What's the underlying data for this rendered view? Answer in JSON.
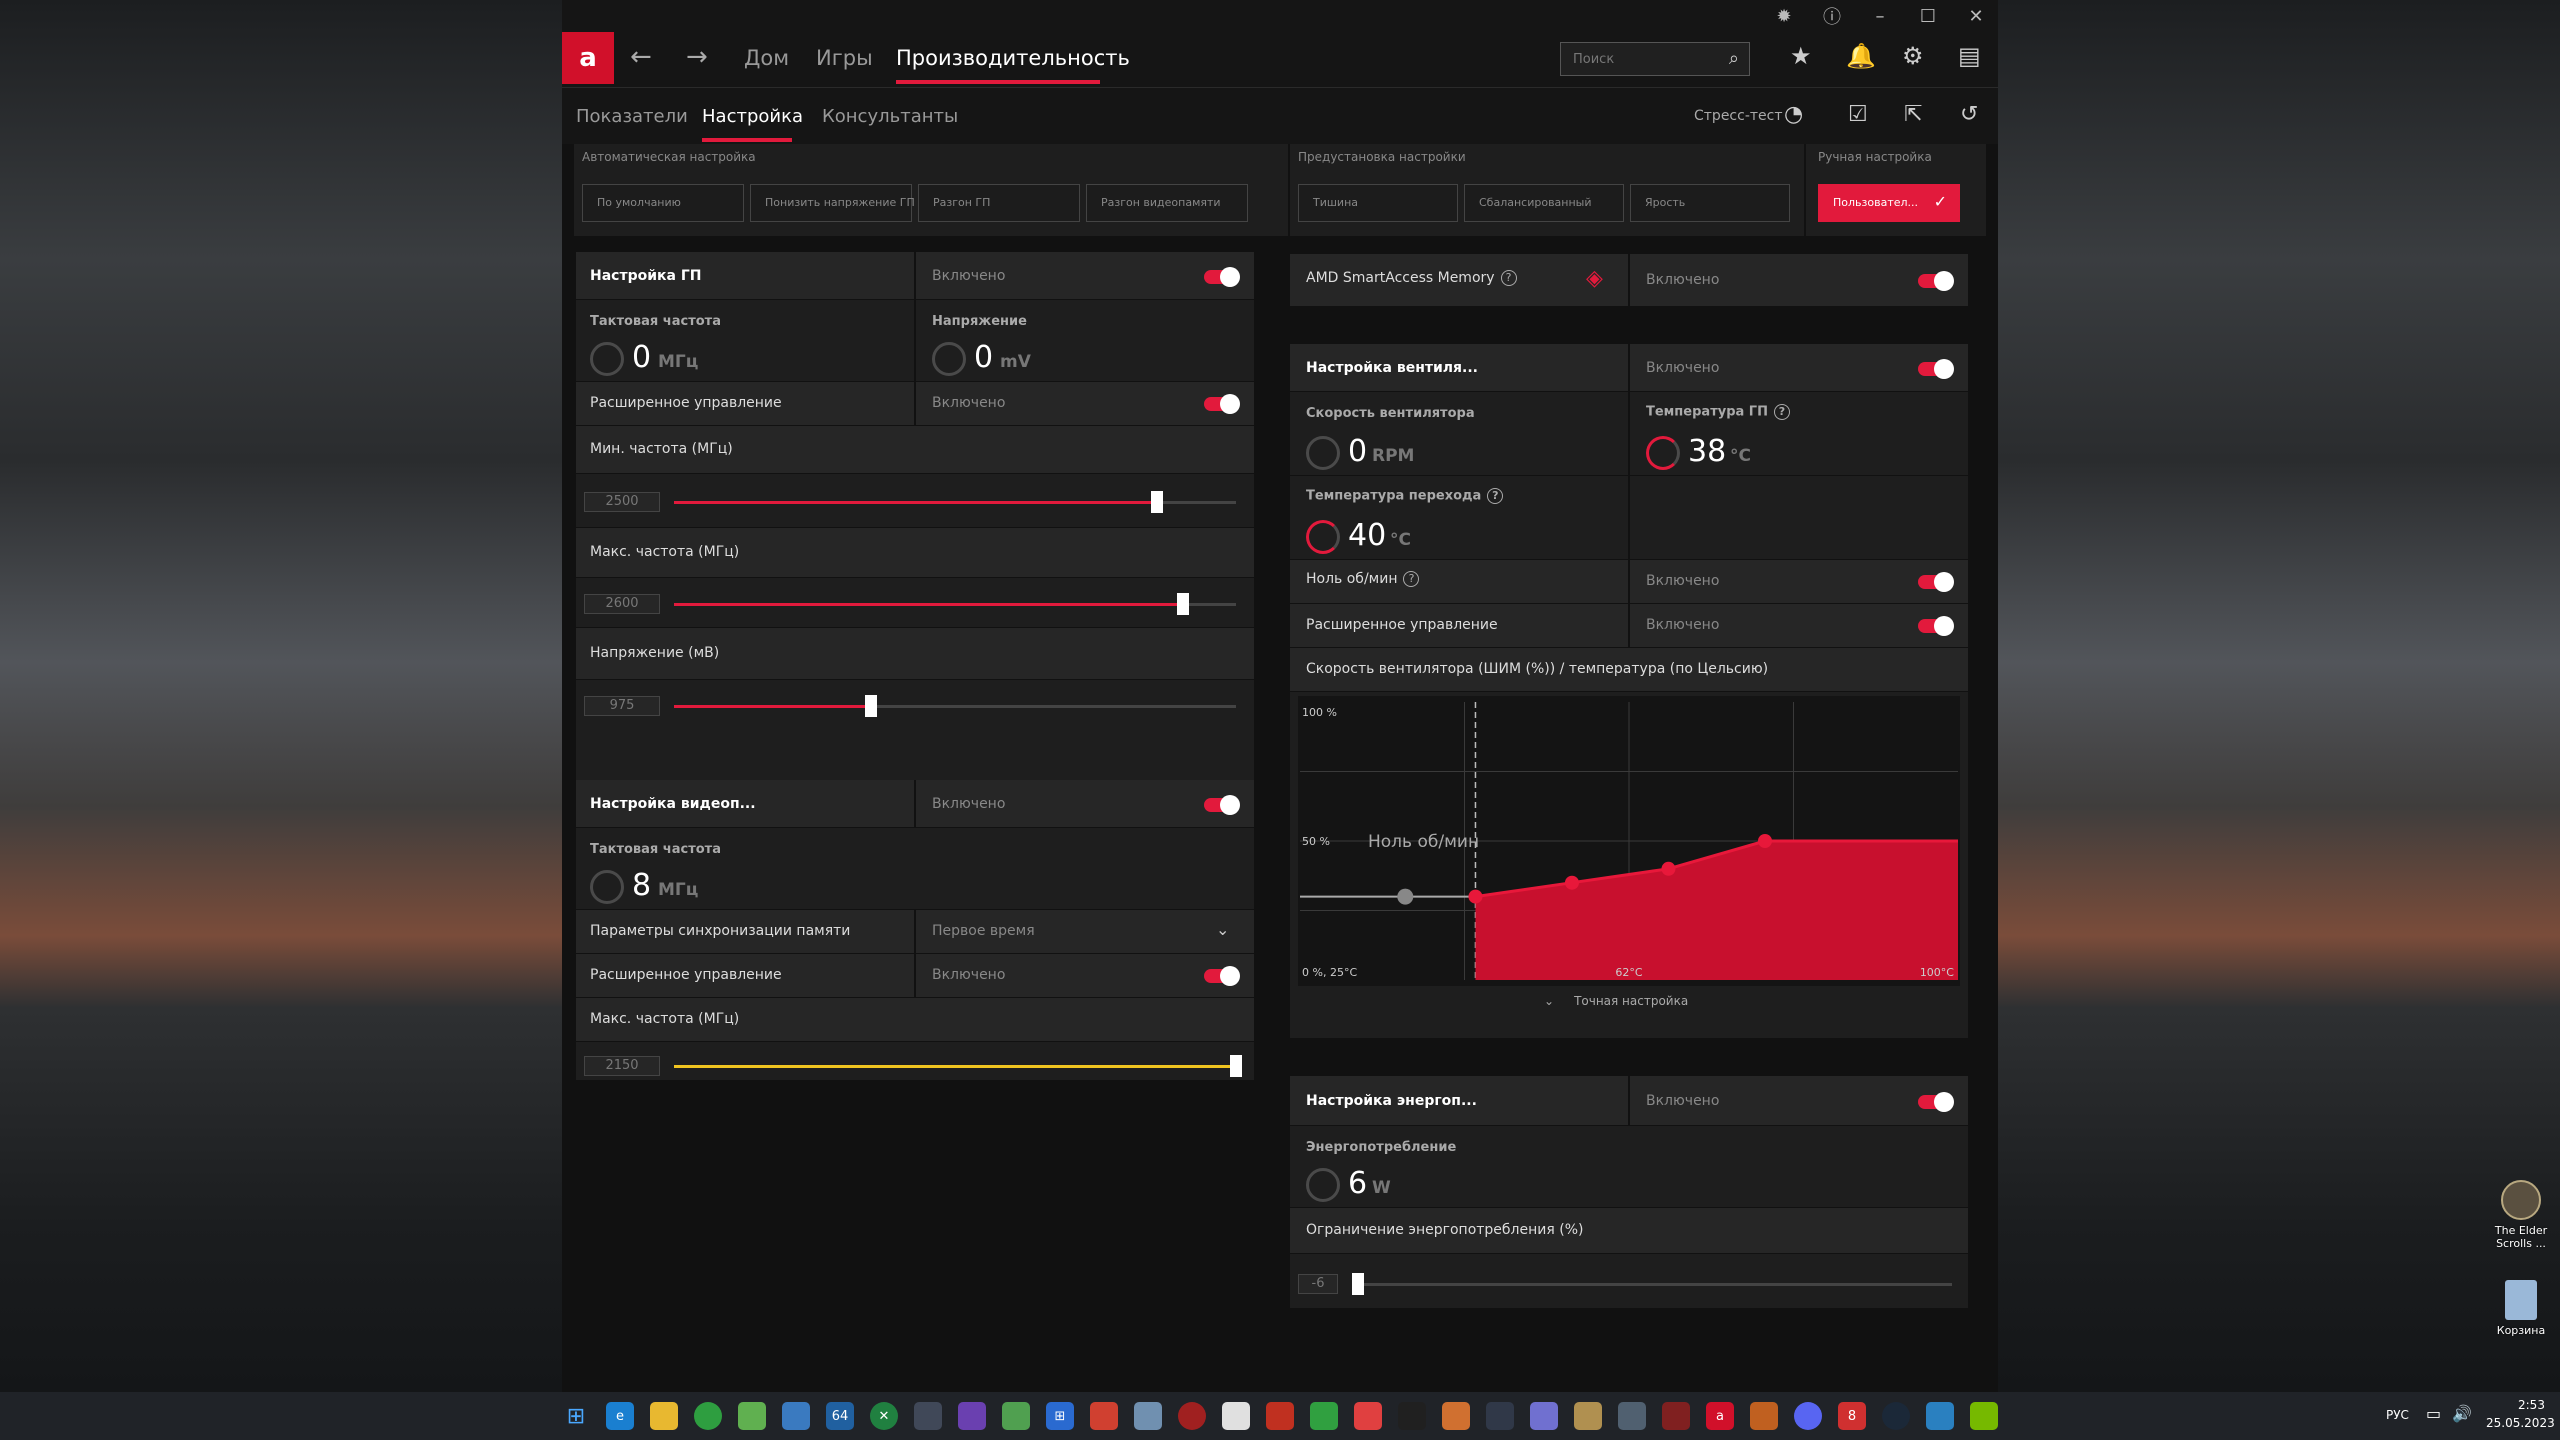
{
  "titlebar": {
    "icons": [
      "bug-icon",
      "help-icon",
      "minimize-icon",
      "maximize-icon",
      "close-icon"
    ]
  },
  "header": {
    "logo": "a",
    "nav": {
      "home": "Дом",
      "games": "Игры",
      "performance": "Производительность"
    },
    "search_placeholder": "Поиск"
  },
  "subnav": {
    "tabs": [
      "Показатели",
      "Настройка",
      "Консультанты"
    ],
    "stress_test": "Стресс-тест"
  },
  "presets": {
    "auto_label": "Автоматическая настройка",
    "auto": [
      "По умолчанию",
      "Понизить напряжение ГП",
      "Разгон ГП",
      "Разгон видеопамяти"
    ],
    "preset_label": "Предустановка настройки",
    "preset": [
      "Тишина",
      "Сбалансированный",
      "Ярость"
    ],
    "manual_label": "Ручная настройка",
    "manual": "Пользовател..."
  },
  "gpu": {
    "title": "Настройка ГП",
    "state": "Включено",
    "clock_label": "Тактовая частота",
    "clock_value": "0",
    "clock_unit": "МГц",
    "voltage_label": "Напряжение",
    "voltage_value": "0",
    "voltage_unit": "mV",
    "advanced_label": "Расширенное управление",
    "advanced_state": "Включено",
    "min_freq_label": "Мин. частота (МГц)",
    "min_freq_value": "2500",
    "min_freq_fill": 0.86,
    "max_freq_label": "Макс. частота (МГц)",
    "max_freq_value": "2600",
    "max_freq_fill": 0.905,
    "volt_label": "Напряжение (мВ)",
    "volt_value": "975",
    "volt_fill": 0.35
  },
  "vram": {
    "title": "Настройка видеоп...",
    "state": "Включено",
    "clock_label": "Тактовая частота",
    "clock_value": "8",
    "clock_unit": "МГц",
    "timing_label": "Параметры синхронизации памяти",
    "timing_value": "Первое время",
    "advanced_label": "Расширенное управление",
    "advanced_state": "Включено",
    "max_freq_label": "Макс. частота (МГц)",
    "max_freq_value": "2150",
    "max_freq_fill": 1.0
  },
  "sam": {
    "title": "AMD SmartAccess Memory",
    "state": "Включено"
  },
  "fan": {
    "title": "Настройка вентиля...",
    "state": "Включено",
    "speed_label": "Скорость вентилятора",
    "speed_value": "0",
    "speed_unit": "RPM",
    "gpu_temp_label": "Температура ГП",
    "gpu_temp_value": "38",
    "gpu_temp_unit": "°C",
    "junction_label": "Температура перехода",
    "junction_value": "40",
    "junction_unit": "°C",
    "zero_rpm_label": "Ноль об/мин",
    "zero_rpm_state": "Включено",
    "advanced_label": "Расширенное управление",
    "advanced_state": "Включено",
    "curve_label": "Скорость вентилятора (ШИМ (%)) / температура (по Цельсию)",
    "fine_tune": "Точная настройка"
  },
  "chart_data": {
    "type": "area",
    "x": [
      25,
      45,
      56,
      67,
      78,
      100
    ],
    "y": [
      30,
      30,
      35,
      40,
      50,
      50
    ],
    "zero_rpm_until": 45,
    "zero_rpm_point": [
      45,
      30
    ],
    "zero_rpm_annotation": "Ноль об/мин",
    "xlim": [
      25,
      100
    ],
    "ylim": [
      0,
      100
    ],
    "tick_labels": {
      "top_left": "100 %",
      "mid_left": "50 %",
      "origin": "0 %, 25°C",
      "mid": "62°C",
      "right": "100°C"
    },
    "grid": true,
    "color": "#c8102e"
  },
  "power": {
    "title": "Настройка энергоп...",
    "state": "Включено",
    "usage_label": "Энергопотребление",
    "usage_value": "6",
    "usage_unit": "W",
    "limit_label": "Ограничение энергопотребления (%)",
    "limit_value": "-6",
    "limit_fill": 0.0
  },
  "desktop": {
    "icon1": "The Elder Scrolls ...",
    "icon2": "Корзина"
  },
  "taskbar": {
    "lang": "РУС",
    "time": "2:53",
    "date": "25.05.2023"
  }
}
